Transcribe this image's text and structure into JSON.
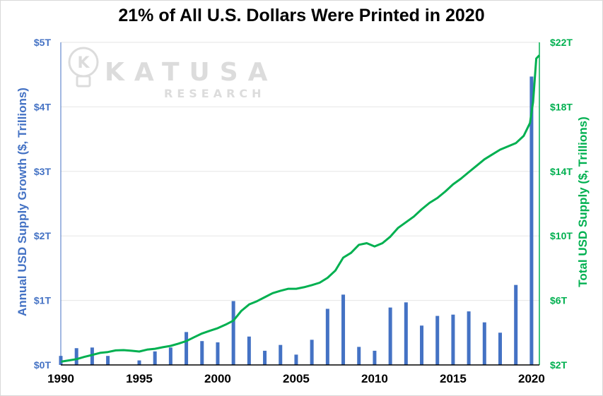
{
  "title": "21% of All U.S. Dollars Were Printed in 2020",
  "watermark": {
    "brand": "KATUSA",
    "sub": "RESEARCH",
    "logo_letter": "K"
  },
  "colors": {
    "bars": "#4472C4",
    "line": "#00B050",
    "left_axis_text": "#4472C4",
    "right_axis_text": "#00B050",
    "grid": "#e6e6e6",
    "watermark": "#d9d9d9"
  },
  "chart_data": {
    "type": "bar+line",
    "title": "21% of All U.S. Dollars Were Printed in 2020",
    "ylabel_left": "Annual USD Supply Growth ($, Trillions)",
    "ylabel_right": "Total USD Supply ($, Trillions)",
    "xlim": [
      1990,
      2020.5
    ],
    "x_ticks": [
      "1990",
      "1995",
      "2000",
      "2005",
      "2010",
      "2015",
      "2020"
    ],
    "x_tick_values": [
      1990,
      1995,
      2000,
      2005,
      2010,
      2015,
      2020
    ],
    "ylim_left": [
      0,
      5
    ],
    "y_ticks_left": [
      "$0T",
      "$1T",
      "$2T",
      "$3T",
      "$4T",
      "$5T"
    ],
    "ylim_right": [
      2,
      22
    ],
    "y_ticks_right": [
      "$2T",
      "$6T",
      "$10T",
      "$14T",
      "$18T",
      "$22T"
    ],
    "grid": "horizontal",
    "bars": {
      "name": "Annual USD Supply Growth",
      "axis": "left",
      "x": [
        1990,
        1991,
        1992,
        1993,
        1994,
        1995,
        1996,
        1997,
        1998,
        1999,
        2000,
        2001,
        2002,
        2003,
        2004,
        2005,
        2006,
        2007,
        2008,
        2009,
        2010,
        2011,
        2012,
        2013,
        2014,
        2015,
        2016,
        2017,
        2018,
        2019,
        2020
      ],
      "values": [
        0.14,
        0.26,
        0.27,
        0.14,
        0.0,
        0.07,
        0.21,
        0.27,
        0.51,
        0.37,
        0.35,
        0.99,
        0.44,
        0.22,
        0.31,
        0.16,
        0.39,
        0.87,
        1.09,
        0.28,
        0.22,
        0.89,
        0.97,
        0.61,
        0.76,
        0.78,
        0.83,
        0.66,
        0.5,
        1.24,
        4.47
      ]
    },
    "line": {
      "name": "Total USD Supply",
      "axis": "right",
      "x": [
        1990,
        1990.5,
        1991,
        1991.5,
        1992,
        1992.5,
        1993,
        1993.5,
        1994,
        1994.5,
        1995,
        1995.5,
        1996,
        1996.5,
        1997,
        1997.5,
        1998,
        1998.5,
        1999,
        1999.5,
        2000,
        2000.5,
        2001,
        2001.5,
        2002,
        2002.5,
        2003,
        2003.5,
        2004,
        2004.5,
        2005,
        2005.5,
        2006,
        2006.5,
        2007,
        2007.5,
        2008,
        2008.5,
        2009,
        2009.5,
        2010,
        2010.5,
        2011,
        2011.5,
        2012,
        2012.5,
        2013,
        2013.5,
        2014,
        2014.5,
        2015,
        2015.5,
        2016,
        2016.5,
        2017,
        2017.5,
        2018,
        2018.5,
        2019,
        2019.5,
        2019.9,
        2020.1,
        2020.3,
        2020.5
      ],
      "values": [
        2.2,
        2.28,
        2.36,
        2.5,
        2.62,
        2.75,
        2.8,
        2.9,
        2.92,
        2.88,
        2.83,
        2.95,
        3.0,
        3.1,
        3.18,
        3.32,
        3.48,
        3.72,
        3.95,
        4.12,
        4.28,
        4.5,
        4.75,
        5.35,
        5.75,
        5.95,
        6.2,
        6.45,
        6.6,
        6.72,
        6.72,
        6.82,
        6.95,
        7.1,
        7.4,
        7.85,
        8.65,
        8.95,
        9.45,
        9.55,
        9.35,
        9.55,
        9.95,
        10.5,
        10.85,
        11.2,
        11.65,
        12.05,
        12.35,
        12.75,
        13.2,
        13.55,
        13.95,
        14.35,
        14.75,
        15.05,
        15.35,
        15.55,
        15.75,
        16.2,
        17.0,
        18.3,
        21.0,
        21.2
      ]
    }
  }
}
